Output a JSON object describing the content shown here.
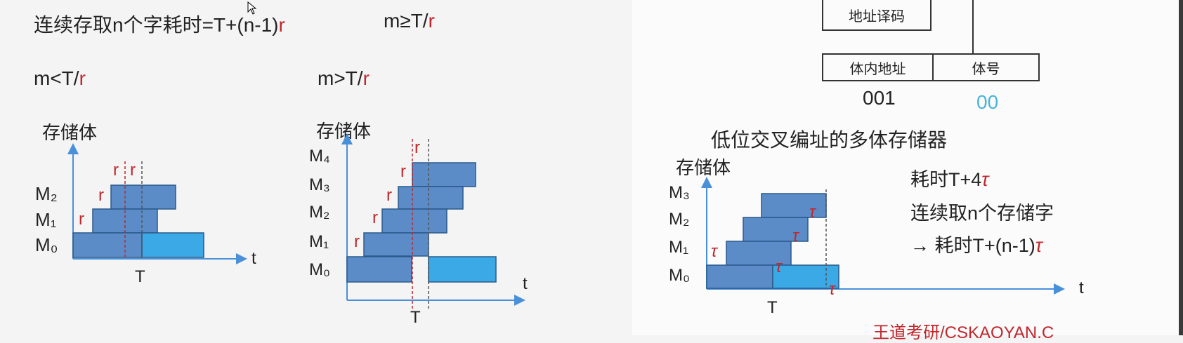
{
  "formulas": {
    "main_prefix": "连续存取n个字耗时=T+(n-1)",
    "main_suffix": "r",
    "cond_ge_prefix": "m≥T/",
    "cond_ge_suffix": "r",
    "cond_lt_prefix": "m<T/",
    "cond_lt_suffix": "r",
    "cond_gt_prefix": "m>T/",
    "cond_gt_suffix": "r"
  },
  "diagram_lt": {
    "y_axis_label": "存储体",
    "x_axis_label": "t",
    "t_label": "T",
    "modules": [
      "M₂",
      "M₁",
      "M₀"
    ],
    "r_label": "r"
  },
  "diagram_gt": {
    "y_axis_label": "存储体",
    "x_axis_label": "t",
    "t_label": "T",
    "modules": [
      "M₄",
      "M₃",
      "M₂",
      "M₁",
      "M₀"
    ],
    "r_label": "r"
  },
  "address_format": {
    "decode_label": "地址译码",
    "in_bank_label": "体内地址",
    "bank_no_label": "体号",
    "in_bank_value": "001",
    "bank_no_value": "00"
  },
  "right_title": "低位交叉编址的多体存储器",
  "diagram_right": {
    "y_axis_label": "存储体",
    "x_axis_label": "t",
    "t_label": "T",
    "modules": [
      "M₃",
      "M₂",
      "M₁",
      "M₀"
    ],
    "tau_label": "τ"
  },
  "notes": {
    "line1_prefix": "耗时T+4",
    "line1_tau": "τ",
    "line2": "连续取n个存储字",
    "line3_prefix": "→ 耗时T+(n-1)",
    "line3_tau": "τ"
  },
  "watermark": "王道考研/CSKAOYAN.C",
  "colors": {
    "bar_dark": "#5b8cc8",
    "bar_light": "#3aa9e6",
    "bar_border": "#2a5a8a",
    "red": "#c0272d",
    "axis": "#4a90d9",
    "teal": "#4bb3d9"
  }
}
